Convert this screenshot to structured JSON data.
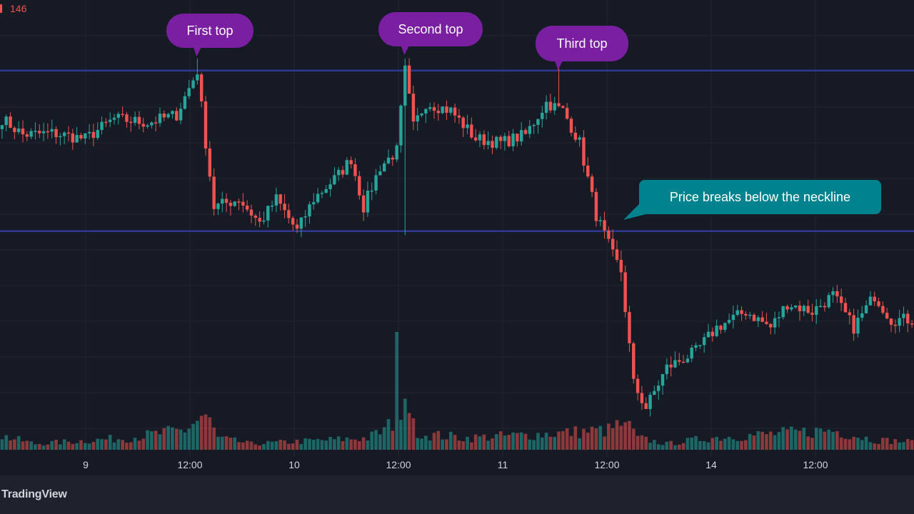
{
  "app": {
    "brand": "TradingView"
  },
  "status": {
    "volume_value": "146"
  },
  "colors": {
    "background": "#161a25",
    "grid": "#222633",
    "up": "#26a69a",
    "down": "#ef5350",
    "level_line": "#2b3a8f",
    "callout_purple": "#7b1fa2",
    "callout_teal": "#00838f",
    "axis_text": "#d1d4dc"
  },
  "chart_data": {
    "type": "candlestick",
    "title": "",
    "x_ticks": [
      "9",
      "12:00",
      "10",
      "12:00",
      "11",
      "12:00",
      "14",
      "12:00"
    ],
    "horizontal_lines": [
      {
        "name": "resistance",
        "value": 100
      },
      {
        "name": "neckline",
        "value": 80
      }
    ],
    "annotations": [
      {
        "label": "First top",
        "style": "purple",
        "target_bar": 47
      },
      {
        "label": "Second top",
        "style": "purple",
        "target_bar": 97
      },
      {
        "label": "Third top",
        "style": "purple",
        "target_bar": 134
      },
      {
        "label": "Price breaks below the neckline",
        "style": "teal",
        "target_bar": 145
      }
    ],
    "anchors": [
      [
        0,
        94
      ],
      [
        5,
        92
      ],
      [
        12,
        92.2
      ],
      [
        20,
        91.5
      ],
      [
        27,
        94
      ],
      [
        35,
        93.5
      ],
      [
        42,
        94.5
      ],
      [
        47,
        100
      ],
      [
        49,
        91
      ],
      [
        51,
        83
      ],
      [
        57,
        84
      ],
      [
        62,
        81
      ],
      [
        66,
        84
      ],
      [
        71,
        80
      ],
      [
        75,
        84
      ],
      [
        81,
        87
      ],
      [
        84,
        89
      ],
      [
        87,
        83
      ],
      [
        91,
        88
      ],
      [
        95,
        90
      ],
      [
        97,
        100
      ],
      [
        99,
        93
      ],
      [
        102,
        96
      ],
      [
        108,
        95
      ],
      [
        114,
        91.5
      ],
      [
        120,
        91
      ],
      [
        126,
        92
      ],
      [
        131,
        96
      ],
      [
        135,
        95
      ],
      [
        139,
        91
      ],
      [
        143,
        82
      ],
      [
        147,
        77
      ],
      [
        149,
        75
      ],
      [
        152,
        61
      ],
      [
        155,
        58
      ],
      [
        160,
        63
      ],
      [
        167,
        65
      ],
      [
        172,
        68
      ],
      [
        179,
        70
      ],
      [
        185,
        68
      ],
      [
        189,
        71
      ],
      [
        195,
        70
      ],
      [
        200,
        72
      ],
      [
        205,
        68
      ],
      [
        210,
        72
      ],
      [
        214,
        69
      ],
      [
        219,
        69
      ]
    ],
    "volume_spikes": [
      [
        49,
        9
      ],
      [
        95,
        30
      ],
      [
        97,
        13
      ],
      [
        99,
        8
      ],
      [
        150,
        7
      ]
    ],
    "volume_bands": [
      [
        0,
        3.5
      ],
      [
        8,
        1.5
      ],
      [
        30,
        3
      ],
      [
        44,
        5
      ],
      [
        49,
        9
      ],
      [
        52,
        3
      ],
      [
        60,
        1.5
      ],
      [
        88,
        3
      ],
      [
        92,
        5
      ],
      [
        96,
        9
      ],
      [
        101,
        4
      ],
      [
        112,
        3
      ],
      [
        130,
        4
      ],
      [
        146,
        5
      ],
      [
        150,
        7
      ],
      [
        153,
        3
      ],
      [
        160,
        1.5
      ],
      [
        170,
        3
      ],
      [
        185,
        4
      ],
      [
        200,
        5
      ],
      [
        210,
        2.5
      ],
      [
        219,
        2
      ]
    ],
    "y_range": [
      55,
      107
    ],
    "volume_range": [
      0,
      30
    ]
  }
}
